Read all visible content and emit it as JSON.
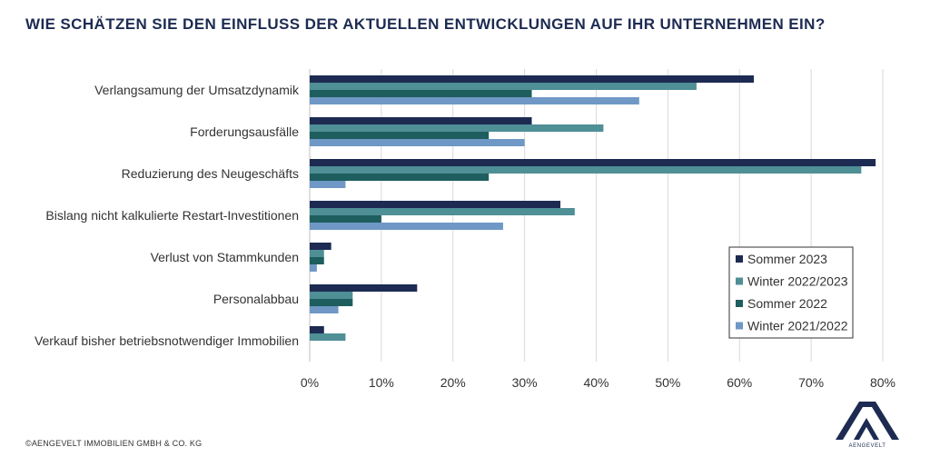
{
  "page": {
    "title": "WIE SCHÄTZEN SIE DEN EINFLUSS DER AKTUELLEN ENTWICKLUNGEN AUF IHR UNTERNEHMEN EIN?",
    "footer": "©AENGEVELT IMMOBILIEN GMBH & CO. KG",
    "logo_text": "AENGEVELT"
  },
  "chart_data": {
    "type": "bar",
    "orientation": "horizontal",
    "categories": [
      "Verlangsamung der Umsatzdynamik",
      "Forderungsausfälle",
      "Reduzierung des Neugeschäfts",
      "Bislang nicht kalkulierte Restart-Investitionen",
      "Verlust von Stammkunden",
      "Personalabbau",
      "Verkauf bisher betriebsnotwendiger Immobilien"
    ],
    "series": [
      {
        "name": "Sommer 2023",
        "color": "#1d2b52",
        "values": [
          62,
          31,
          79,
          35,
          3,
          15,
          2
        ]
      },
      {
        "name": "Winter 2022/2023",
        "color": "#4f8f96",
        "values": [
          54,
          41,
          77,
          37,
          2,
          6,
          5
        ]
      },
      {
        "name": "Sommer 2022",
        "color": "#1e5e5e",
        "values": [
          31,
          25,
          25,
          10,
          2,
          6,
          0
        ]
      },
      {
        "name": "Winter 2021/2022",
        "color": "#6f98c6",
        "values": [
          46,
          30,
          5,
          27,
          1,
          4,
          0
        ]
      }
    ],
    "xlim": [
      0,
      80
    ],
    "xticks": [
      "0%",
      "10%",
      "20%",
      "30%",
      "40%",
      "50%",
      "60%",
      "70%",
      "80%"
    ],
    "grid": true,
    "legend_position": "right"
  }
}
